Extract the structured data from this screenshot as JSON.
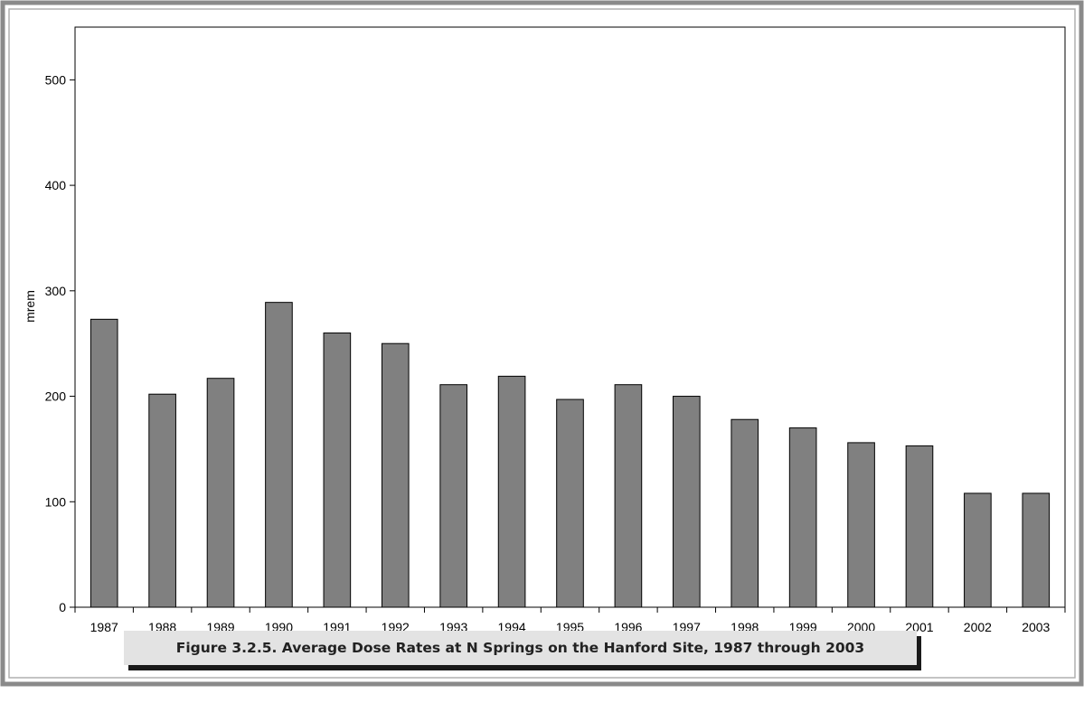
{
  "caption": "Figure 3.2.5.  Average Dose Rates at N Springs on the Hanford Site, 1987 through 2003",
  "chart_data": {
    "type": "bar",
    "title": "",
    "xlabel": "",
    "ylabel": "mrem",
    "ylim": [
      0,
      550
    ],
    "yticks": [
      0,
      100,
      200,
      300,
      400,
      500
    ],
    "grid": false,
    "legend": "none",
    "bar_color": "#808080",
    "categories": [
      "1987",
      "1988",
      "1989",
      "1990",
      "1991",
      "1992",
      "1993",
      "1994",
      "1995",
      "1996",
      "1997",
      "1998",
      "1999",
      "2000",
      "2001",
      "2002",
      "2003"
    ],
    "values": [
      273,
      202,
      217,
      289,
      260,
      250,
      211,
      219,
      197,
      211,
      200,
      178,
      170,
      156,
      153,
      108,
      108
    ]
  }
}
